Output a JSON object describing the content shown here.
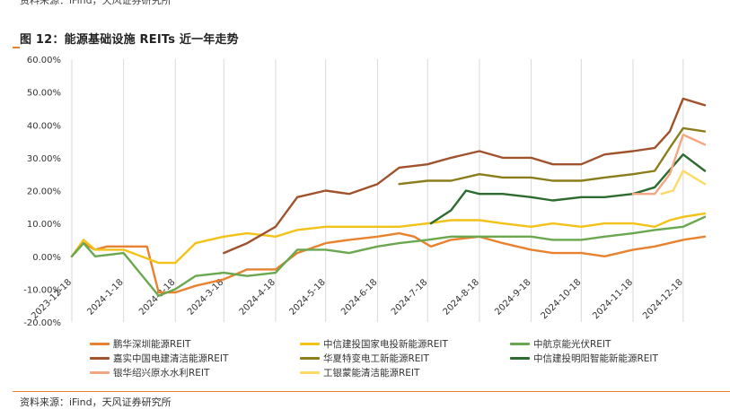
{
  "header": {
    "top_source": "资料来源：iFind，天风证券研究所",
    "title": "图 12：能源基础设施 REITs 近一年走势"
  },
  "footer": {
    "source": "资料来源：iFind，天风证券研究所"
  },
  "colors": {
    "accent": "#e8822f",
    "grid": "#d9d9d9"
  },
  "chart_data": {
    "type": "line",
    "title": "图 12：能源基础设施 REITs 近一年走势",
    "xlabel": "",
    "ylabel": "",
    "ylim": [
      -0.2,
      0.6
    ],
    "yticks": [
      -0.2,
      -0.1,
      0.0,
      0.1,
      0.2,
      0.3,
      0.4,
      0.5,
      0.6
    ],
    "ytick_labels": [
      "-20.00%",
      "-10.00%",
      "0.00%",
      "10.00%",
      "20.00%",
      "30.00%",
      "40.00%",
      "50.00%",
      "60.00%"
    ],
    "x_range": [
      "2023-12-18",
      "2024-12-31"
    ],
    "xtick_labels": [
      "2023-12-18",
      "2024-1-18",
      "2024-2-18",
      "2024-3-18",
      "2024-4-18",
      "2024-5-18",
      "2024-6-18",
      "2024-7-18",
      "2024-8-18",
      "2024-9-18",
      "2024-10-18",
      "2024-11-18",
      "2024-12-18"
    ],
    "grid": "vertical",
    "legend_position": "bottom",
    "series": [
      {
        "name": "鹏华深圳能源REIT",
        "color": "#e8822f",
        "points": [
          [
            "2023-12-18",
            0
          ],
          [
            "2023-12-25",
            0.04
          ],
          [
            "2024-01-01",
            0.02
          ],
          [
            "2024-01-08",
            0.03
          ],
          [
            "2024-01-18",
            0.03
          ],
          [
            "2024-02-01",
            0.03
          ],
          [
            "2024-02-08",
            -0.11
          ],
          [
            "2024-02-18",
            -0.11
          ],
          [
            "2024-03-01",
            -0.09
          ],
          [
            "2024-03-18",
            -0.07
          ],
          [
            "2024-04-01",
            -0.04
          ],
          [
            "2024-04-18",
            -0.04
          ],
          [
            "2024-05-01",
            0.01
          ],
          [
            "2024-05-18",
            0.04
          ],
          [
            "2024-06-01",
            0.05
          ],
          [
            "2024-06-18",
            0.06
          ],
          [
            "2024-07-01",
            0.07
          ],
          [
            "2024-07-10",
            0.06
          ],
          [
            "2024-07-20",
            0.03
          ],
          [
            "2024-08-01",
            0.05
          ],
          [
            "2024-08-18",
            0.06
          ],
          [
            "2024-09-01",
            0.04
          ],
          [
            "2024-09-18",
            0.02
          ],
          [
            "2024-10-01",
            0.01
          ],
          [
            "2024-10-18",
            0.01
          ],
          [
            "2024-11-01",
            0.0
          ],
          [
            "2024-11-18",
            0.02
          ],
          [
            "2024-12-01",
            0.03
          ],
          [
            "2024-12-18",
            0.05
          ],
          [
            "2024-12-31",
            0.06
          ]
        ]
      },
      {
        "name": "中信建投国家电投新能源REIT",
        "color": "#f2c218",
        "points": [
          [
            "2023-12-18",
            0
          ],
          [
            "2023-12-25",
            0.05
          ],
          [
            "2024-01-01",
            0.02
          ],
          [
            "2024-01-18",
            0.02
          ],
          [
            "2024-02-08",
            -0.02
          ],
          [
            "2024-02-18",
            -0.02
          ],
          [
            "2024-03-01",
            0.04
          ],
          [
            "2024-03-18",
            0.06
          ],
          [
            "2024-04-01",
            0.07
          ],
          [
            "2024-04-18",
            0.06
          ],
          [
            "2024-05-01",
            0.08
          ],
          [
            "2024-05-18",
            0.09
          ],
          [
            "2024-06-01",
            0.09
          ],
          [
            "2024-06-18",
            0.09
          ],
          [
            "2024-07-01",
            0.09
          ],
          [
            "2024-07-18",
            0.1
          ],
          [
            "2024-08-01",
            0.11
          ],
          [
            "2024-08-18",
            0.11
          ],
          [
            "2024-09-01",
            0.1
          ],
          [
            "2024-09-18",
            0.09
          ],
          [
            "2024-10-01",
            0.1
          ],
          [
            "2024-10-18",
            0.09
          ],
          [
            "2024-11-01",
            0.1
          ],
          [
            "2024-11-18",
            0.1
          ],
          [
            "2024-12-01",
            0.09
          ],
          [
            "2024-12-10",
            0.11
          ],
          [
            "2024-12-18",
            0.12
          ],
          [
            "2024-12-31",
            0.13
          ]
        ]
      },
      {
        "name": "中航京能光伏REIT",
        "color": "#6aa84f",
        "points": [
          [
            "2023-12-18",
            0
          ],
          [
            "2023-12-25",
            0.04
          ],
          [
            "2024-01-01",
            0.0
          ],
          [
            "2024-01-18",
            0.01
          ],
          [
            "2024-02-08",
            -0.12
          ],
          [
            "2024-02-18",
            -0.1
          ],
          [
            "2024-03-01",
            -0.06
          ],
          [
            "2024-03-18",
            -0.05
          ],
          [
            "2024-04-01",
            -0.06
          ],
          [
            "2024-04-18",
            -0.05
          ],
          [
            "2024-05-01",
            0.02
          ],
          [
            "2024-05-18",
            0.02
          ],
          [
            "2024-06-01",
            0.01
          ],
          [
            "2024-06-18",
            0.03
          ],
          [
            "2024-07-01",
            0.04
          ],
          [
            "2024-07-18",
            0.05
          ],
          [
            "2024-08-01",
            0.06
          ],
          [
            "2024-08-18",
            0.06
          ],
          [
            "2024-09-01",
            0.06
          ],
          [
            "2024-09-18",
            0.06
          ],
          [
            "2024-10-01",
            0.05
          ],
          [
            "2024-10-18",
            0.05
          ],
          [
            "2024-11-01",
            0.06
          ],
          [
            "2024-11-18",
            0.07
          ],
          [
            "2024-12-01",
            0.08
          ],
          [
            "2024-12-18",
            0.09
          ],
          [
            "2024-12-31",
            0.12
          ]
        ]
      },
      {
        "name": "嘉实中国电建清洁能源REIT",
        "color": "#a0522d",
        "points": [
          [
            "2024-03-18",
            0.01
          ],
          [
            "2024-04-01",
            0.04
          ],
          [
            "2024-04-18",
            0.09
          ],
          [
            "2024-05-01",
            0.18
          ],
          [
            "2024-05-18",
            0.2
          ],
          [
            "2024-06-01",
            0.19
          ],
          [
            "2024-06-18",
            0.22
          ],
          [
            "2024-07-01",
            0.27
          ],
          [
            "2024-07-18",
            0.28
          ],
          [
            "2024-08-01",
            0.3
          ],
          [
            "2024-08-18",
            0.32
          ],
          [
            "2024-09-01",
            0.3
          ],
          [
            "2024-09-18",
            0.3
          ],
          [
            "2024-10-01",
            0.28
          ],
          [
            "2024-10-18",
            0.28
          ],
          [
            "2024-11-01",
            0.31
          ],
          [
            "2024-11-18",
            0.32
          ],
          [
            "2024-12-01",
            0.33
          ],
          [
            "2024-12-10",
            0.38
          ],
          [
            "2024-12-18",
            0.48
          ],
          [
            "2024-12-31",
            0.46
          ]
        ]
      },
      {
        "name": "华夏特变电工新能源REIT",
        "color": "#8b7d1a",
        "points": [
          [
            "2024-07-01",
            0.22
          ],
          [
            "2024-07-18",
            0.23
          ],
          [
            "2024-08-01",
            0.23
          ],
          [
            "2024-08-18",
            0.25
          ],
          [
            "2024-09-01",
            0.24
          ],
          [
            "2024-09-18",
            0.24
          ],
          [
            "2024-10-01",
            0.23
          ],
          [
            "2024-10-18",
            0.23
          ],
          [
            "2024-11-01",
            0.24
          ],
          [
            "2024-11-18",
            0.25
          ],
          [
            "2024-12-01",
            0.26
          ],
          [
            "2024-12-10",
            0.33
          ],
          [
            "2024-12-18",
            0.39
          ],
          [
            "2024-12-31",
            0.38
          ]
        ]
      },
      {
        "name": "中信建投明阳智能新能源REIT",
        "color": "#2e6b30",
        "points": [
          [
            "2024-07-20",
            0.1
          ],
          [
            "2024-08-01",
            0.14
          ],
          [
            "2024-08-10",
            0.2
          ],
          [
            "2024-08-18",
            0.19
          ],
          [
            "2024-09-01",
            0.19
          ],
          [
            "2024-09-18",
            0.18
          ],
          [
            "2024-10-01",
            0.17
          ],
          [
            "2024-10-18",
            0.18
          ],
          [
            "2024-11-01",
            0.18
          ],
          [
            "2024-11-18",
            0.19
          ],
          [
            "2024-12-01",
            0.21
          ],
          [
            "2024-12-18",
            0.31
          ],
          [
            "2024-12-31",
            0.26
          ]
        ]
      },
      {
        "name": "银华绍兴原水水利REIT",
        "color": "#f4a582",
        "points": [
          [
            "2024-11-18",
            0.19
          ],
          [
            "2024-12-01",
            0.19
          ],
          [
            "2024-12-10",
            0.25
          ],
          [
            "2024-12-18",
            0.37
          ],
          [
            "2024-12-31",
            0.34
          ]
        ]
      },
      {
        "name": "工银蒙能清洁能源REIT",
        "color": "#ffd966",
        "points": [
          [
            "2024-12-05",
            0.19
          ],
          [
            "2024-12-12",
            0.2
          ],
          [
            "2024-12-18",
            0.26
          ],
          [
            "2024-12-31",
            0.22
          ]
        ]
      }
    ]
  }
}
